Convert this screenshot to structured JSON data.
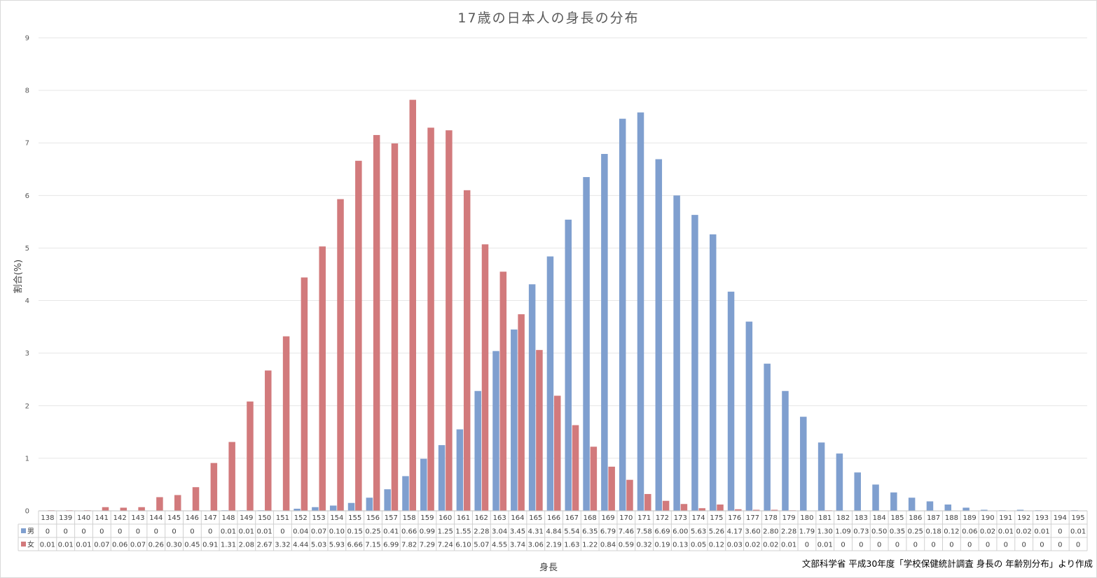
{
  "chart_data": {
    "type": "bar",
    "title": "17歳の日本人の身長の分布",
    "xlabel": "身長",
    "ylabel": "割合(%)",
    "ylim": [
      0,
      9
    ],
    "yticks": [
      0,
      1,
      2,
      3,
      4,
      5,
      6,
      7,
      8,
      9
    ],
    "grid": true,
    "legend": "data-table",
    "source": "文部科学省 平成30年度「学校保健統計調査 身長の 年齢別分布」より作成",
    "categories": [
      "138",
      "139",
      "140",
      "141",
      "142",
      "143",
      "144",
      "145",
      "146",
      "147",
      "148",
      "149",
      "150",
      "151",
      "152",
      "153",
      "154",
      "155",
      "156",
      "157",
      "158",
      "159",
      "160",
      "161",
      "162",
      "163",
      "164",
      "165",
      "166",
      "167",
      "168",
      "169",
      "170",
      "171",
      "172",
      "173",
      "174",
      "175",
      "176",
      "177",
      "178",
      "179",
      "180",
      "181",
      "182",
      "183",
      "184",
      "185",
      "186",
      "187",
      "188",
      "189",
      "190",
      "191",
      "192",
      "193",
      "194",
      "195"
    ],
    "series": [
      {
        "name": "男",
        "color": "#7f9fcf",
        "values": [
          0,
          0,
          0,
          0,
          0,
          0,
          0,
          0,
          0,
          0,
          0.01,
          0.01,
          0.01,
          0,
          0.04,
          0.07,
          0.1,
          0.15,
          0.25,
          0.41,
          0.66,
          0.99,
          1.25,
          1.55,
          2.28,
          3.04,
          3.45,
          4.31,
          4.84,
          5.54,
          6.35,
          6.79,
          7.46,
          7.58,
          6.69,
          6.0,
          5.63,
          5.26,
          4.17,
          3.6,
          2.8,
          2.28,
          1.79,
          1.3,
          1.09,
          0.73,
          0.5,
          0.35,
          0.25,
          0.18,
          0.12,
          0.06,
          0.02,
          0.01,
          0.02,
          0.01,
          0,
          0.01
        ],
        "labels": [
          "0",
          "0",
          "0",
          "0",
          "0",
          "0",
          "0",
          "0",
          "0",
          "0",
          "0.01",
          "0.01",
          "0.01",
          "0",
          "0.04",
          "0.07",
          "0.10",
          "0.15",
          "0.25",
          "0.41",
          "0.66",
          "0.99",
          "1.25",
          "1.55",
          "2.28",
          "3.04",
          "3.45",
          "4.31",
          "4.84",
          "5.54",
          "6.35",
          "6.79",
          "7.46",
          "7.58",
          "6.69",
          "6.00",
          "5.63",
          "5.26",
          "4.17",
          "3.60",
          "2.80",
          "2.28",
          "1.79",
          "1.30",
          "1.09",
          "0.73",
          "0.50",
          "0.35",
          "0.25",
          "0.18",
          "0.12",
          "0.06",
          "0.02",
          "0.01",
          "0.02",
          "0.01",
          "0",
          "0.01"
        ]
      },
      {
        "name": "女",
        "color": "#d27a7c",
        "values": [
          0.01,
          0.01,
          0.01,
          0.07,
          0.06,
          0.07,
          0.26,
          0.3,
          0.45,
          0.91,
          1.31,
          2.08,
          2.67,
          3.32,
          4.44,
          5.03,
          5.93,
          6.66,
          7.15,
          6.99,
          7.82,
          7.29,
          7.24,
          6.1,
          5.07,
          4.55,
          3.74,
          3.06,
          2.19,
          1.63,
          1.22,
          0.84,
          0.59,
          0.32,
          0.19,
          0.13,
          0.05,
          0.12,
          0.03,
          0.02,
          0.02,
          0.01,
          0,
          0.01,
          0,
          0,
          0,
          0,
          0,
          0,
          0,
          0,
          0,
          0,
          0,
          0,
          0,
          0
        ],
        "labels": [
          "0.01",
          "0.01",
          "0.01",
          "0.07",
          "0.06",
          "0.07",
          "0.26",
          "0.30",
          "0.45",
          "0.91",
          "1.31",
          "2.08",
          "2.67",
          "3.32",
          "4.44",
          "5.03",
          "5.93",
          "6.66",
          "7.15",
          "6.99",
          "7.82",
          "7.29",
          "7.24",
          "6.10",
          "5.07",
          "4.55",
          "3.74",
          "3.06",
          "2.19",
          "1.63",
          "1.22",
          "0.84",
          "0.59",
          "0.32",
          "0.19",
          "0.13",
          "0.05",
          "0.12",
          "0.03",
          "0.02",
          "0.02",
          "0.01",
          "0",
          "0.01",
          "0",
          "0",
          "0",
          "0",
          "0",
          "0",
          "0",
          "0",
          "0",
          "0",
          "0",
          "0",
          "0",
          "0"
        ]
      }
    ]
  }
}
